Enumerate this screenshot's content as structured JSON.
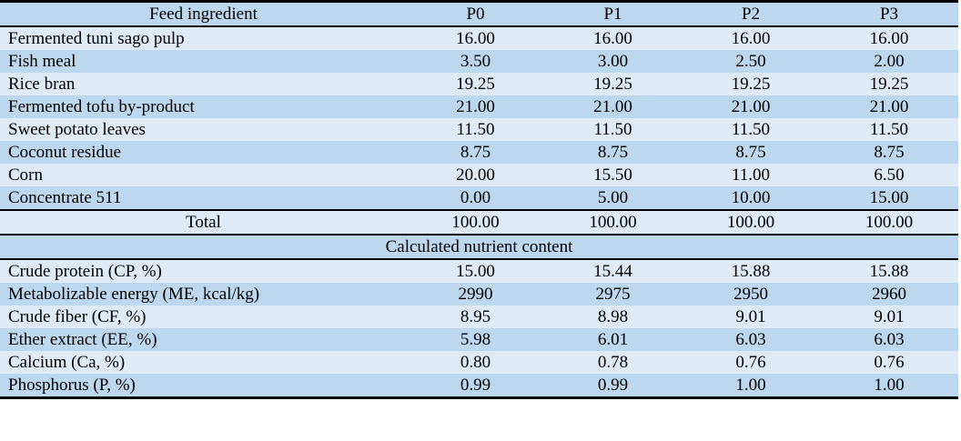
{
  "chart_data": {
    "type": "table",
    "columns": [
      "Feed ingredient",
      "P0",
      "P1",
      "P2",
      "P3"
    ],
    "ingredient_rows": [
      {
        "label": "Fermented tuni sago pulp",
        "values": [
          "16.00",
          "16.00",
          "16.00",
          "16.00"
        ]
      },
      {
        "label": "Fish meal",
        "values": [
          "3.50",
          "3.00",
          "2.50",
          "2.00"
        ]
      },
      {
        "label": "Rice bran",
        "values": [
          "19.25",
          "19.25",
          "19.25",
          "19.25"
        ]
      },
      {
        "label": "Fermented tofu by-product",
        "values": [
          "21.00",
          "21.00",
          "21.00",
          "21.00"
        ]
      },
      {
        "label": "Sweet potato leaves",
        "values": [
          "11.50",
          "11.50",
          "11.50",
          "11.50"
        ]
      },
      {
        "label": "Coconut residue",
        "values": [
          "8.75",
          "8.75",
          "8.75",
          "8.75"
        ]
      },
      {
        "label": "Corn",
        "values": [
          "20.00",
          "15.50",
          "11.00",
          "6.50"
        ]
      },
      {
        "label": "Concentrate 511",
        "values": [
          "0.00",
          "5.00",
          "10.00",
          "15.00"
        ]
      }
    ],
    "total_row": {
      "label": "Total",
      "values": [
        "100.00",
        "100.00",
        "100.00",
        "100.00"
      ]
    },
    "section_header": "Calculated nutrient content",
    "nutrient_rows": [
      {
        "label": "Crude protein (CP, %)",
        "values": [
          "15.00",
          "15.44",
          "15.88",
          "15.88"
        ]
      },
      {
        "label": "Metabolizable energy (ME, kcal/kg)",
        "values": [
          "2990",
          "2975",
          "2950",
          "2960"
        ]
      },
      {
        "label": "Crude fiber (CF, %)",
        "values": [
          "8.95",
          "8.98",
          "9.01",
          "9.01"
        ]
      },
      {
        "label": "Ether extract (EE, %)",
        "values": [
          "5.98",
          "6.01",
          "6.03",
          "6.03"
        ]
      },
      {
        "label": "Calcium (Ca, %)",
        "values": [
          "0.80",
          "0.78",
          "0.76",
          "0.76"
        ]
      },
      {
        "label": "Phosphorus (P, %)",
        "values": [
          "0.99",
          "0.99",
          "1.00",
          "1.00"
        ]
      }
    ]
  },
  "colors": {
    "row_light": "#deebf7",
    "row_medium": "#bdd7ee",
    "border": "#000000",
    "text": "#000000",
    "background": "#ffffff"
  }
}
